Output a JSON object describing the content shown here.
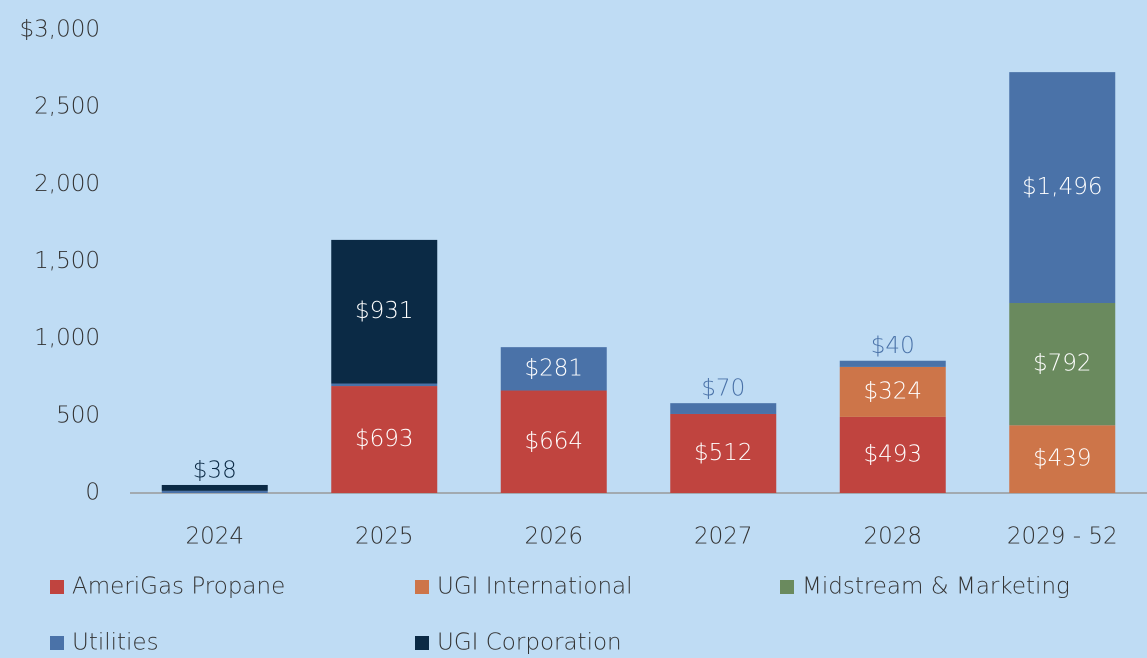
{
  "chart_data": {
    "type": "stacked_bar",
    "categories": [
      "2024",
      "2025",
      "2026",
      "2027",
      "2028",
      "2029 - 52"
    ],
    "series": [
      {
        "name": "AmeriGas Propane",
        "color": "#c0443f",
        "values": [
          null,
          693,
          664,
          512,
          493,
          null
        ],
        "value_labels": [
          null,
          "$693",
          "$664",
          "$512",
          "$493",
          null
        ]
      },
      {
        "name": "UGI International",
        "color": "#cd7549",
        "values": [
          null,
          null,
          null,
          null,
          324,
          439
        ],
        "value_labels": [
          null,
          null,
          null,
          null,
          "$324",
          "$439"
        ]
      },
      {
        "name": "Midstream & Marketing",
        "color": "#6a8a5e",
        "values": [
          null,
          null,
          null,
          null,
          null,
          792
        ],
        "value_labels": [
          null,
          null,
          null,
          null,
          null,
          "$792"
        ]
      },
      {
        "name": "Utilities",
        "color": "#4a72a8",
        "values": [
          14,
          16,
          281,
          70,
          40,
          1496
        ],
        "value_labels": [
          null,
          null,
          "$281",
          "$70",
          "$40",
          "$1,496"
        ]
      },
      {
        "name": "UGI Corporation",
        "color": "#0b2a45",
        "values": [
          38,
          931,
          null,
          null,
          null,
          null
        ],
        "value_labels": [
          "$38",
          "$931",
          null,
          null,
          null,
          null
        ]
      }
    ],
    "ylim": [
      0,
      3000
    ],
    "yticks": [
      0,
      500,
      {
        "value": 1000,
        "label": "1,000"
      },
      {
        "value": 1500,
        "label": "1,500"
      },
      {
        "value": 2000,
        "label": "2,000"
      },
      {
        "value": 2500,
        "label": "2,500"
      },
      {
        "value": 3000,
        "label": "$3,000"
      }
    ],
    "grid": false,
    "legend": "bottom"
  }
}
